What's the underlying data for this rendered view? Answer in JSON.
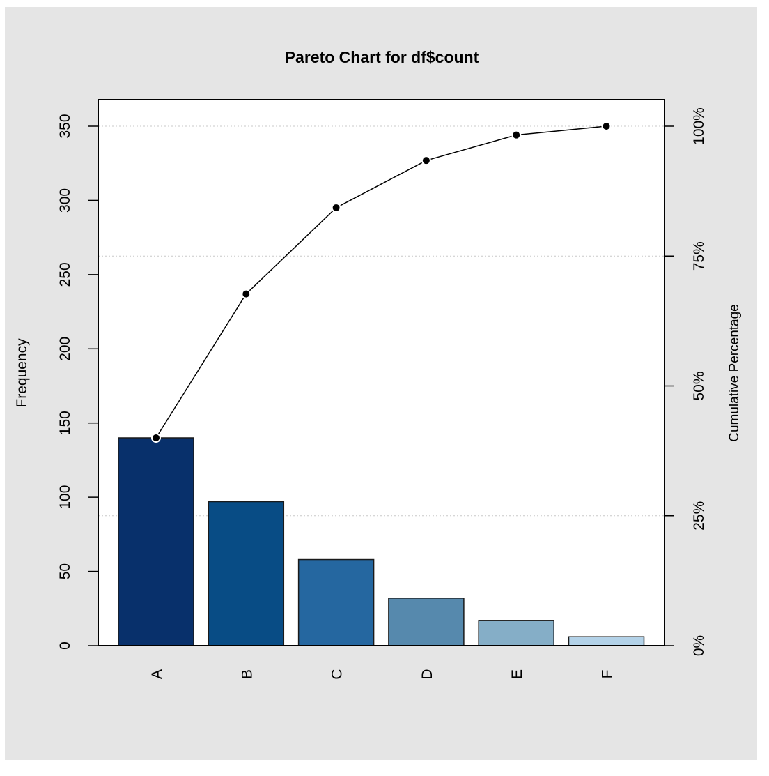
{
  "chart_data": {
    "type": "bar",
    "title": "Pareto Chart for df$count",
    "ylabel": "Frequency",
    "y2label": "Cumulative Percentage",
    "xlabel": "",
    "categories": [
      "A",
      "B",
      "C",
      "D",
      "E",
      "F"
    ],
    "values": [
      140,
      97,
      58,
      32,
      17,
      6
    ],
    "cumulative_percent": [
      40,
      67.7,
      84.3,
      93.4,
      98.3,
      100
    ],
    "ylim": [
      0,
      350
    ],
    "y_ticks": [
      0,
      50,
      100,
      150,
      200,
      250,
      300,
      350
    ],
    "y2_ticks": [
      0,
      25,
      50,
      75,
      100
    ],
    "y2_tick_labels": [
      "0%",
      "25%",
      "50%",
      "75%",
      "100%"
    ],
    "bar_colors": [
      "#08306b",
      "#084c85",
      "#2567a0",
      "#5689ad",
      "#85aec7",
      "#b3d2e8"
    ],
    "grid": "horizontal-dotted",
    "background_color": "#e5e5e5",
    "plot_background": "#ffffff"
  }
}
